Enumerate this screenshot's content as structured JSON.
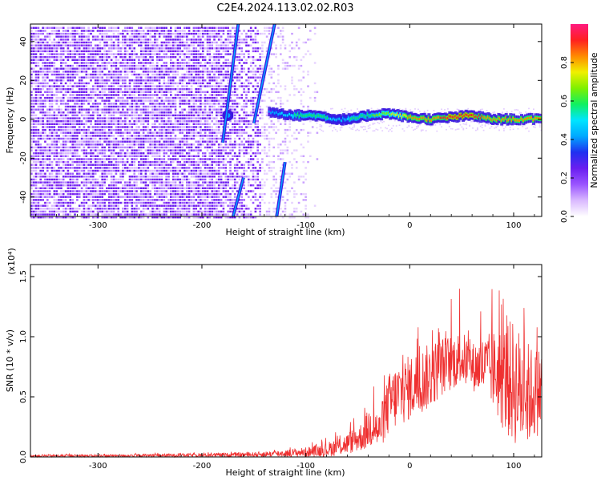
{
  "title": "C2E4.2024.113.02.02.R03",
  "colors": {
    "signal": "#ef3030",
    "axis": "#000000",
    "background": "#ffffff",
    "spectrum_noise": "#7a1ff0",
    "spectrum_colormap": [
      "#ffffff",
      "#d9b8ff",
      "#9a55ff",
      "#6a1ef0",
      "#2030f0",
      "#00a8ff",
      "#00e5ff",
      "#10f060",
      "#7ff000",
      "#f0f000",
      "#ff8a00",
      "#ff2020",
      "#ff1a80"
    ]
  },
  "chart_data": [
    {
      "type": "heatmap",
      "xlabel": "Height of straight line (km)",
      "ylabel": "Frequency (Hz)",
      "xlim": [
        -365,
        127
      ],
      "ylim": [
        -50,
        49
      ],
      "xticks": [
        -300,
        -200,
        -100,
        0,
        100
      ],
      "xtick_labels": [
        "-300",
        "-200",
        "-100",
        "0",
        "100"
      ],
      "yticks": [
        -40,
        -20,
        0,
        20,
        40
      ],
      "ytick_labels": [
        "-40",
        "-20",
        "0",
        "20",
        "40"
      ],
      "colorbar": {
        "label": "Normalized spectral amplitude",
        "range": [
          0,
          1
        ],
        "ticks": [
          0.0,
          0.2,
          0.4,
          0.6,
          0.8
        ],
        "tick_labels": [
          "0.0",
          "0.2",
          "0.4",
          "0.6",
          "0.8"
        ]
      },
      "noise_region_x": [
        -365,
        -90
      ],
      "doppler_line": {
        "x": [
          -135,
          -110,
          -90,
          -70,
          -55,
          -40,
          -20,
          0,
          20,
          40,
          60,
          80,
          100,
          127
        ],
        "y": [
          4,
          2,
          2,
          0,
          0,
          2,
          3,
          1,
          0,
          1,
          2,
          0,
          0,
          0
        ],
        "peak_amplitude": [
          0.4,
          0.55,
          0.6,
          0.5,
          0.55,
          0.6,
          0.7,
          0.8,
          0.85,
          0.9,
          0.9,
          0.85,
          0.85,
          0.8
        ]
      },
      "diagonal_streaks": [
        {
          "from": [
            -165,
            49
          ],
          "to": [
            -180,
            -12
          ]
        },
        {
          "from": [
            -130,
            49
          ],
          "to": [
            -150,
            -2
          ]
        },
        {
          "from": [
            -160,
            -30
          ],
          "to": [
            -170,
            -50
          ]
        },
        {
          "from": [
            -120,
            -22
          ],
          "to": [
            -128,
            -50
          ]
        }
      ],
      "grid": false
    },
    {
      "type": "line",
      "xlabel": "Height of straight line (km)",
      "ylabel": "SNR (10 * v/v)",
      "scale_label": "(x10⁴)",
      "xlim": [
        -365,
        127
      ],
      "ylim": [
        0,
        1.6
      ],
      "xticks": [
        -300,
        -200,
        -100,
        0,
        100
      ],
      "xtick_labels": [
        "-300",
        "-200",
        "-100",
        "0",
        "100"
      ],
      "yticks": [
        0.0,
        0.5,
        1.0,
        1.5
      ],
      "ytick_labels": [
        "0.0",
        "0.5",
        "1.0",
        "1.5"
      ],
      "series": [
        {
          "x": [
            -365,
            -300,
            -200,
            -150,
            -120,
            -100,
            -80,
            -60,
            -45,
            -35,
            -30,
            -20,
            -10,
            0,
            10,
            20,
            30,
            40,
            50,
            60,
            70,
            80,
            90,
            100,
            110,
            120,
            127
          ],
          "y": [
            0.02,
            0.02,
            0.03,
            0.04,
            0.06,
            0.08,
            0.12,
            0.2,
            0.3,
            0.5,
            0.35,
            0.7,
            0.8,
            0.85,
            0.9,
            0.95,
            1.0,
            1.02,
            1.05,
            0.95,
            1.0,
            1.05,
            1.1,
            1.15,
            1.0,
            0.9,
            0.95
          ],
          "y_min": [
            0.0,
            0.0,
            0.0,
            0.0,
            0.0,
            0.0,
            0.0,
            0.02,
            0.05,
            0.08,
            0.05,
            0.18,
            0.25,
            0.3,
            0.35,
            0.4,
            0.5,
            0.55,
            0.6,
            0.55,
            0.5,
            0.4,
            0.2,
            0.1,
            0.05,
            0.15,
            0.2
          ]
        }
      ],
      "grid": false
    }
  ]
}
